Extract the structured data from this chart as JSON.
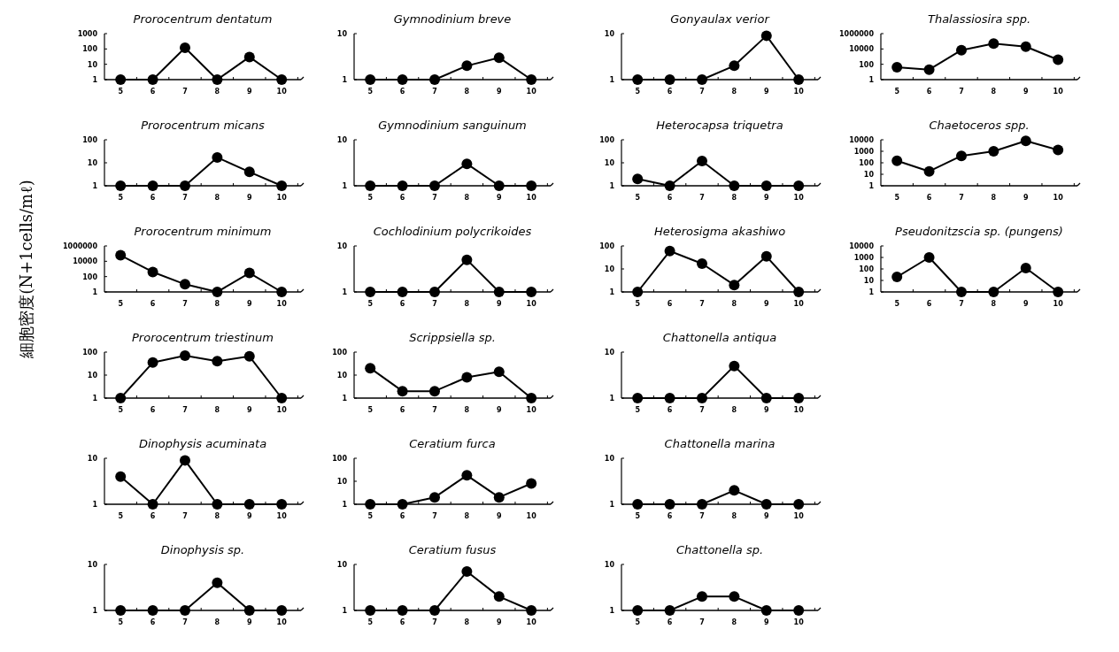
{
  "chart_data": [
    {
      "type": "line",
      "title": "Prorocentrum dentatum",
      "categories": [
        "5",
        "6",
        "7",
        "8",
        "9",
        "10"
      ],
      "log": "y",
      "marker": "circle",
      "ylim": [
        1,
        1000
      ],
      "yticks": [
        1,
        10,
        100,
        1000
      ],
      "series": [
        {
          "color": "#000000",
          "values": [
            1,
            1,
            120,
            1,
            30,
            1
          ]
        }
      ]
    },
    {
      "type": "line",
      "title": "Gymnodinium breve",
      "categories": [
        "5",
        "6",
        "7",
        "8",
        "9",
        "10"
      ],
      "log": "y",
      "marker": "circle",
      "ylim": [
        1,
        10
      ],
      "yticks": [
        1,
        10
      ],
      "series": [
        {
          "color": "#000000",
          "values": [
            1,
            1,
            1,
            2,
            3,
            1
          ]
        }
      ]
    },
    {
      "type": "line",
      "title": "Gonyaulax verior",
      "categories": [
        "5",
        "6",
        "7",
        "8",
        "9",
        "10"
      ],
      "log": "y",
      "marker": "circle",
      "ylim": [
        1,
        10
      ],
      "yticks": [
        1,
        10
      ],
      "series": [
        {
          "color": "#000000",
          "values": [
            1,
            1,
            1,
            2,
            9,
            1
          ]
        }
      ]
    },
    {
      "type": "line",
      "title": "Thalassiosira spp.",
      "categories": [
        "5",
        "6",
        "7",
        "8",
        "9",
        "10"
      ],
      "log": "y",
      "marker": "circle",
      "ylim": [
        1,
        1000000
      ],
      "yticks": [
        1,
        100,
        10000,
        1000000
      ],
      "series": [
        {
          "color": "#000000",
          "values": [
            40,
            20,
            7000,
            50000,
            20000,
            400
          ]
        }
      ]
    },
    {
      "type": "line",
      "title": "Prorocentrum micans",
      "categories": [
        "5",
        "6",
        "7",
        "8",
        "9",
        "10"
      ],
      "log": "y",
      "marker": "circle",
      "ylim": [
        1,
        100
      ],
      "yticks": [
        1,
        10,
        100
      ],
      "series": [
        {
          "color": "#000000",
          "values": [
            1,
            1,
            1,
            17,
            4,
            1
          ]
        }
      ]
    },
    {
      "type": "line",
      "title": "Gymnodinium sanguinum",
      "categories": [
        "5",
        "6",
        "7",
        "8",
        "9",
        "10"
      ],
      "log": "y",
      "marker": "circle",
      "ylim": [
        1,
        10
      ],
      "yticks": [
        1,
        10
      ],
      "series": [
        {
          "color": "#000000",
          "values": [
            1,
            1,
            1,
            3,
            1,
            1
          ]
        }
      ]
    },
    {
      "type": "line",
      "title": "Heterocapsa triquetra",
      "categories": [
        "5",
        "6",
        "7",
        "8",
        "9",
        "10"
      ],
      "log": "y",
      "marker": "circle",
      "ylim": [
        1,
        100
      ],
      "yticks": [
        1,
        10,
        100
      ],
      "series": [
        {
          "color": "#000000",
          "values": [
            2,
            1,
            12,
            1,
            1,
            1
          ]
        }
      ]
    },
    {
      "type": "line",
      "title": "Chaetoceros spp.",
      "categories": [
        "5",
        "6",
        "7",
        "8",
        "9",
        "10"
      ],
      "log": "y",
      "marker": "circle",
      "ylim": [
        1,
        10000
      ],
      "yticks": [
        1,
        10,
        100,
        1000,
        10000
      ],
      "series": [
        {
          "color": "#000000",
          "values": [
            150,
            18,
            400,
            1000,
            8000,
            1300
          ]
        }
      ]
    },
    {
      "type": "line",
      "title": "Prorocentrum minimum",
      "ylabel": "細胞密度(N+1cells/mℓ)",
      "categories": [
        "5",
        "6",
        "7",
        "8",
        "9",
        "10"
      ],
      "log": "y",
      "marker": "circle",
      "ylim": [
        1,
        1000000
      ],
      "yticks": [
        1,
        100,
        10000,
        1000000
      ],
      "series": [
        {
          "color": "#000000",
          "values": [
            60000,
            400,
            10,
            1,
            300,
            1
          ]
        }
      ]
    },
    {
      "type": "line",
      "title": "Cochlodinium polycrikoides",
      "categories": [
        "5",
        "6",
        "7",
        "8",
        "9",
        "10"
      ],
      "log": "y",
      "marker": "circle",
      "ylim": [
        1,
        10
      ],
      "yticks": [
        1,
        10
      ],
      "series": [
        {
          "color": "#000000",
          "values": [
            1,
            1,
            1,
            5,
            1,
            1
          ]
        }
      ]
    },
    {
      "type": "line",
      "title": "Heterosigma akashiwo",
      "categories": [
        "5",
        "6",
        "7",
        "8",
        "9",
        "10"
      ],
      "log": "y",
      "marker": "circle",
      "ylim": [
        1,
        100
      ],
      "yticks": [
        1,
        10,
        100
      ],
      "series": [
        {
          "color": "#000000",
          "values": [
            1,
            60,
            17,
            2,
            35,
            1
          ]
        }
      ]
    },
    {
      "type": "line",
      "title": "Pseudonitzscia sp. (pungens)",
      "categories": [
        "5",
        "6",
        "7",
        "8",
        "9",
        "10"
      ],
      "log": "y",
      "marker": "circle",
      "ylim": [
        1,
        10000
      ],
      "yticks": [
        1,
        10,
        100,
        1000,
        10000
      ],
      "series": [
        {
          "color": "#000000",
          "values": [
            20,
            1000,
            1,
            1,
            120,
            1
          ]
        }
      ]
    },
    {
      "type": "line",
      "title": "Prorocentrum triestinum",
      "categories": [
        "5",
        "6",
        "7",
        "8",
        "9",
        "10"
      ],
      "log": "y",
      "marker": "circle",
      "ylim": [
        1,
        100
      ],
      "yticks": [
        1,
        10,
        100
      ],
      "series": [
        {
          "color": "#000000",
          "values": [
            1,
            35,
            70,
            40,
            65,
            1
          ]
        }
      ]
    },
    {
      "type": "line",
      "title": "Scrippsiella sp.",
      "categories": [
        "5",
        "6",
        "7",
        "8",
        "9",
        "10"
      ],
      "log": "y",
      "marker": "circle",
      "ylim": [
        1,
        100
      ],
      "yticks": [
        1,
        10,
        100
      ],
      "series": [
        {
          "color": "#000000",
          "values": [
            20,
            2,
            2,
            8,
            14,
            1
          ]
        }
      ]
    },
    {
      "type": "line",
      "title": "Chattonella antiqua",
      "categories": [
        "5",
        "6",
        "7",
        "8",
        "9",
        "10"
      ],
      "log": "y",
      "marker": "circle",
      "ylim": [
        1,
        10
      ],
      "yticks": [
        1,
        10
      ],
      "series": [
        {
          "color": "#000000",
          "values": [
            1,
            1,
            1,
            5,
            1,
            1
          ]
        }
      ]
    },
    {
      "type": "line",
      "title": "Dinophysis acuminata",
      "categories": [
        "5",
        "6",
        "7",
        "8",
        "9",
        "10"
      ],
      "log": "y",
      "marker": "circle",
      "ylim": [
        1,
        10
      ],
      "yticks": [
        1,
        10
      ],
      "series": [
        {
          "color": "#000000",
          "values": [
            4,
            1,
            9,
            1,
            1,
            1
          ]
        }
      ]
    },
    {
      "type": "line",
      "title": "Ceratium furca",
      "categories": [
        "5",
        "6",
        "7",
        "8",
        "9",
        "10"
      ],
      "log": "y",
      "marker": "circle",
      "ylim": [
        1,
        100
      ],
      "yticks": [
        1,
        10,
        100
      ],
      "series": [
        {
          "color": "#000000",
          "values": [
            1,
            1,
            2,
            18,
            2,
            8
          ]
        }
      ]
    },
    {
      "type": "line",
      "title": "Chattonella marina",
      "categories": [
        "5",
        "6",
        "7",
        "8",
        "9",
        "10"
      ],
      "log": "y",
      "marker": "circle",
      "ylim": [
        1,
        10
      ],
      "yticks": [
        1,
        10
      ],
      "series": [
        {
          "color": "#000000",
          "values": [
            1,
            1,
            1,
            2,
            1,
            1
          ]
        }
      ]
    },
    {
      "type": "line",
      "title": "Dinophysis sp.",
      "categories": [
        "5",
        "6",
        "7",
        "8",
        "9",
        "10"
      ],
      "log": "y",
      "marker": "circle",
      "ylim": [
        1,
        10
      ],
      "yticks": [
        1,
        10
      ],
      "series": [
        {
          "color": "#000000",
          "values": [
            1,
            1,
            1,
            4,
            1,
            1
          ]
        }
      ]
    },
    {
      "type": "line",
      "title": "Ceratium fusus",
      "categories": [
        "5",
        "6",
        "7",
        "8",
        "9",
        "10"
      ],
      "log": "y",
      "marker": "circle",
      "ylim": [
        1,
        10
      ],
      "yticks": [
        1,
        10
      ],
      "series": [
        {
          "color": "#000000",
          "values": [
            1,
            1,
            1,
            7,
            2,
            1
          ]
        }
      ]
    },
    {
      "type": "line",
      "title": "Chattonella sp.",
      "categories": [
        "5",
        "6",
        "7",
        "8",
        "9",
        "10"
      ],
      "log": "y",
      "marker": "circle",
      "ylim": [
        1,
        10
      ],
      "yticks": [
        1,
        10
      ],
      "series": [
        {
          "color": "#000000",
          "values": [
            1,
            1,
            2,
            2,
            1,
            1
          ]
        }
      ]
    }
  ]
}
